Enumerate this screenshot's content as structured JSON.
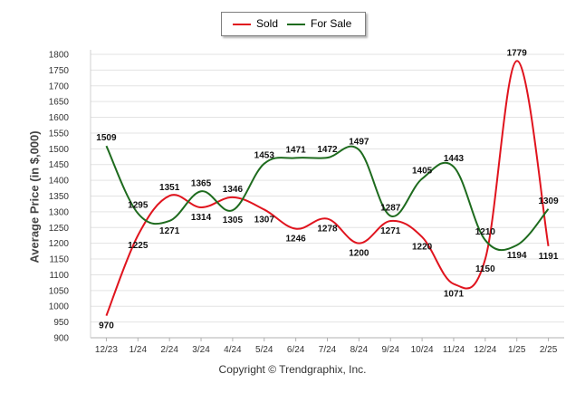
{
  "chart_data": {
    "type": "line",
    "ylabel": "Average Price (in $,000)",
    "ylim": [
      900,
      1800
    ],
    "ytick_step": 50,
    "categories": [
      "12/23",
      "1/24",
      "2/24",
      "3/24",
      "4/24",
      "5/24",
      "6/24",
      "7/24",
      "8/24",
      "9/24",
      "10/24",
      "11/24",
      "12/24",
      "1/25",
      "2/25"
    ],
    "series": [
      {
        "name": "Sold",
        "color": "#e0141e",
        "values": [
          970,
          1225,
          1351,
          1314,
          1346,
          1307,
          1246,
          1278,
          1200,
          1271,
          1220,
          1071,
          1150,
          1779,
          1191
        ]
      },
      {
        "name": "For Sale",
        "color": "#1e6b1e",
        "values": [
          1509,
          1295,
          1271,
          1365,
          1305,
          1453,
          1471,
          1472,
          1497,
          1287,
          1405,
          1443,
          1210,
          1194,
          1309
        ]
      }
    ],
    "grid": "horizontal",
    "legend_position": "top"
  },
  "footer": {
    "copyright": "Copyright © Trendgraphix, Inc."
  }
}
